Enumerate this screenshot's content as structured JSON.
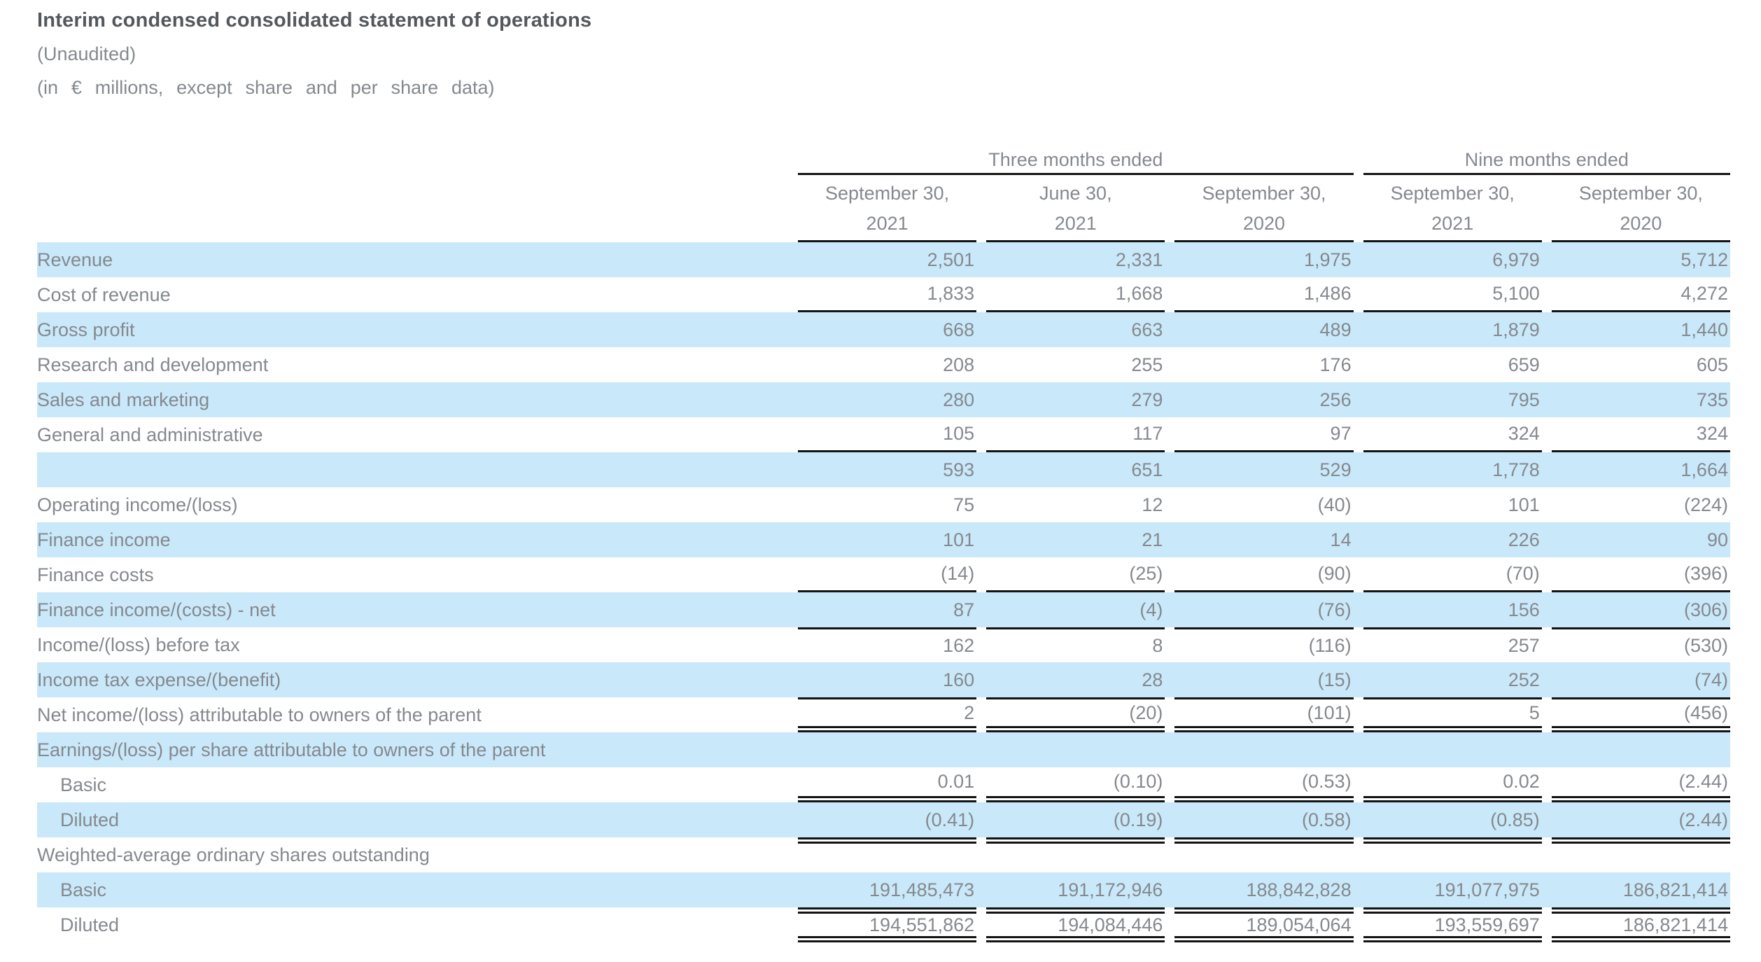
{
  "title": "Interim condensed consolidated statement of operations",
  "subtitle1": "(Unaudited)",
  "subtitle2": "(in € millions, except share and per share data)",
  "colors": {
    "row_highlight": "#C9E8FA",
    "text_gray": "#85898E",
    "title_gray": "#54585C",
    "rule_black": "#131313"
  },
  "table": {
    "column_groups": [
      {
        "label": "Three months ended",
        "span": 3
      },
      {
        "label": "Nine months ended",
        "span": 2
      }
    ],
    "columns": [
      {
        "line1": "September 30,",
        "line2": "2021"
      },
      {
        "line1": "June 30,",
        "line2": "2021"
      },
      {
        "line1": "September 30,",
        "line2": "2020"
      },
      {
        "line1": "September 30,",
        "line2": "2021"
      },
      {
        "line1": "September 30,",
        "line2": "2020"
      }
    ],
    "rows": [
      {
        "label": "Revenue",
        "values": [
          "2,501",
          "2,331",
          "1,975",
          "6,979",
          "5,712"
        ],
        "shade": true
      },
      {
        "label": "Cost of revenue",
        "values": [
          "1,833",
          "1,668",
          "1,486",
          "5,100",
          "4,272"
        ],
        "rule_bottom": "single"
      },
      {
        "label": "Gross profit",
        "values": [
          "668",
          "663",
          "489",
          "1,879",
          "1,440"
        ],
        "shade": true
      },
      {
        "label": "Research and development",
        "values": [
          "208",
          "255",
          "176",
          "659",
          "605"
        ]
      },
      {
        "label": "Sales and marketing",
        "values": [
          "280",
          "279",
          "256",
          "795",
          "735"
        ],
        "shade": true
      },
      {
        "label": "General and administrative",
        "values": [
          "105",
          "117",
          "97",
          "324",
          "324"
        ],
        "rule_bottom": "single"
      },
      {
        "label": "",
        "values": [
          "593",
          "651",
          "529",
          "1,778",
          "1,664"
        ],
        "shade": true
      },
      {
        "label": "Operating income/(loss)",
        "values": [
          "75",
          "12",
          "(40)",
          "101",
          "(224)"
        ]
      },
      {
        "label": "Finance income",
        "values": [
          "101",
          "21",
          "14",
          "226",
          "90"
        ],
        "shade": true
      },
      {
        "label": "Finance costs",
        "values": [
          "(14)",
          "(25)",
          "(90)",
          "(70)",
          "(396)"
        ],
        "rule_bottom": "single"
      },
      {
        "label": "Finance income/(costs) - net",
        "values": [
          "87",
          "(4)",
          "(76)",
          "156",
          "(306)"
        ],
        "shade": true
      },
      {
        "label": "Income/(loss) before tax",
        "values": [
          "162",
          "8",
          "(116)",
          "257",
          "(530)"
        ],
        "rule_top": "single"
      },
      {
        "label": "Income tax expense/(benefit)",
        "values": [
          "160",
          "28",
          "(15)",
          "252",
          "(74)"
        ],
        "shade": true
      },
      {
        "label": "Net income/(loss) attributable to owners of the parent",
        "values": [
          "2",
          "(20)",
          "(101)",
          "5",
          "(456)"
        ],
        "rule_top": "single",
        "rule_bottom": "double"
      },
      {
        "label": "Earnings/(loss) per share attributable to owners of the parent",
        "values": [
          "",
          "",
          "",
          "",
          ""
        ],
        "shade": true
      },
      {
        "label": "Basic",
        "values": [
          "0.01",
          "(0.10)",
          "(0.53)",
          "0.02",
          "(2.44)"
        ],
        "indent": true,
        "rule_bottom": "double"
      },
      {
        "label": "Diluted",
        "values": [
          "(0.41)",
          "(0.19)",
          "(0.58)",
          "(0.85)",
          "(2.44)"
        ],
        "shade": true,
        "indent": true
      },
      {
        "label": "Weighted-average ordinary shares outstanding",
        "values": [
          "",
          "",
          "",
          "",
          ""
        ],
        "rule_top": "double"
      },
      {
        "label": "Basic",
        "values": [
          "191,485,473",
          "191,172,946",
          "188,842,828",
          "191,077,975",
          "186,821,414"
        ],
        "shade": true,
        "indent": true
      },
      {
        "label": "Diluted",
        "values": [
          "194,551,862",
          "194,084,446",
          "189,054,064",
          "193,559,697",
          "186,821,414"
        ],
        "indent": true,
        "rule_top": "double",
        "rule_bottom": "double"
      }
    ]
  }
}
